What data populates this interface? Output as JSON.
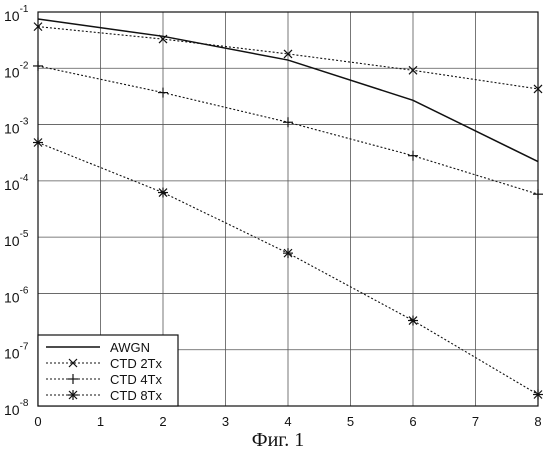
{
  "chart_data": {
    "type": "line",
    "caption": "Фиг. 1",
    "xlim": [
      0,
      8
    ],
    "y_scale": "log",
    "ylim": [
      1e-08,
      0.1
    ],
    "grid": true,
    "legend_placement": "bottom-left",
    "x_ticks": [
      "0",
      "1",
      "2",
      "3",
      "4",
      "5",
      "6",
      "7",
      "8"
    ],
    "y_ticks": [
      {
        "value": 0.1,
        "base": "10",
        "exp": "-1"
      },
      {
        "value": 0.01,
        "base": "10",
        "exp": "-2"
      },
      {
        "value": 0.001,
        "base": "10",
        "exp": "-3"
      },
      {
        "value": 0.0001,
        "base": "10",
        "exp": "-4"
      },
      {
        "value": 1e-05,
        "base": "10",
        "exp": "-5"
      },
      {
        "value": 1e-06,
        "base": "10",
        "exp": "-6"
      },
      {
        "value": 1e-07,
        "base": "10",
        "exp": "-7"
      },
      {
        "value": 1e-08,
        "base": "10",
        "exp": "-8"
      }
    ],
    "series": [
      {
        "name": "AWGN",
        "line_style": "solid",
        "marker": "none",
        "x": [
          0,
          2,
          4,
          6,
          8
        ],
        "y": [
          0.075,
          0.037,
          0.014,
          0.0027,
          0.00022
        ]
      },
      {
        "name": "CTD 2Tx",
        "line_style": "dotted",
        "marker": "x",
        "x": [
          0,
          2,
          4,
          6,
          8
        ],
        "y": [
          0.055,
          0.033,
          0.018,
          0.0092,
          0.0043
        ]
      },
      {
        "name": "CTD 4Tx",
        "line_style": "dotted",
        "marker": "plus",
        "x": [
          0,
          2,
          4,
          6,
          8
        ],
        "y": [
          0.011,
          0.0037,
          0.0011,
          0.00028,
          5.8e-05
        ]
      },
      {
        "name": "CTD 8Tx",
        "line_style": "dotted",
        "marker": "star",
        "x": [
          0,
          2,
          4,
          6,
          8
        ],
        "y": [
          0.00048,
          6.2e-05,
          5.2e-06,
          3.3e-07,
          1.6e-08
        ]
      }
    ]
  }
}
